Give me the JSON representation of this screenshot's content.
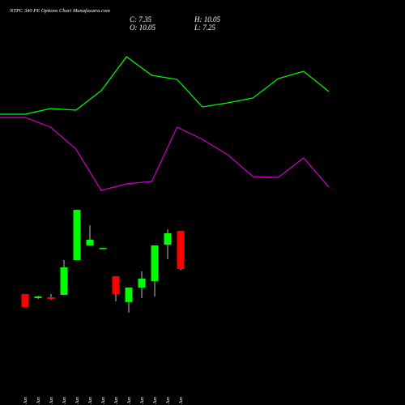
{
  "chart_data": [
    {
      "type": "line",
      "x": [
        0,
        1,
        2,
        3,
        4,
        5,
        6,
        7,
        8,
        9,
        10,
        11,
        12,
        13
      ],
      "xlim": [
        0,
        13
      ],
      "ylim": [
        0,
        210
      ],
      "series": [
        {
          "color": "#00ff00",
          "values": [
            109,
            109,
            116,
            114,
            138,
            180,
            157,
            152,
            118,
            123,
            129,
            153,
            162,
            137
          ]
        },
        {
          "color": "#cc00cc",
          "values": [
            105,
            105,
            93,
            66,
            15,
            23,
            26,
            93,
            78,
            59,
            32,
            31,
            55,
            19
          ]
        }
      ]
    },
    {
      "type": "candlestick",
      "title": "NTPC 340 PE Options Chart Munafasutra.com",
      "ohlc_labels": {
        "close": "C: 7.35",
        "high": "H: 10.05",
        "open": "O: 10.05",
        "low": "L: 7.25"
      },
      "categories": [
        "02 Jan",
        "06 Jan",
        "07 Jan",
        "08 Jan",
        "09 Jan",
        "12 Jan",
        "13 Jan",
        "14 Jan",
        "16 Jan",
        "19 Jan",
        "20 Jan",
        "21 Jan",
        "22 Jan"
      ],
      "open": [
        5.57,
        5.28,
        5.34,
        5.51,
        7.98,
        9.02,
        8.79,
        6.83,
        5.0,
        6.03,
        6.49,
        9.07,
        10.05
      ],
      "high": [
        5.57,
        5.45,
        5.57,
        7.98,
        11.54,
        10.45,
        8.84,
        6.83,
        6.03,
        7.18,
        9.02,
        10.16,
        10.05
      ],
      "low": [
        4.65,
        5.22,
        5.16,
        5.51,
        7.98,
        9.02,
        8.79,
        5.05,
        4.25,
        5.28,
        5.39,
        8.04,
        7.25
      ],
      "close": [
        4.65,
        5.39,
        5.22,
        7.46,
        11.54,
        9.42,
        8.84,
        5.57,
        6.03,
        6.66,
        9.02,
        9.88,
        7.35
      ],
      "up_color": "#00ff00",
      "down_color": "#ff0000",
      "ylim": [
        3,
        13
      ]
    }
  ]
}
